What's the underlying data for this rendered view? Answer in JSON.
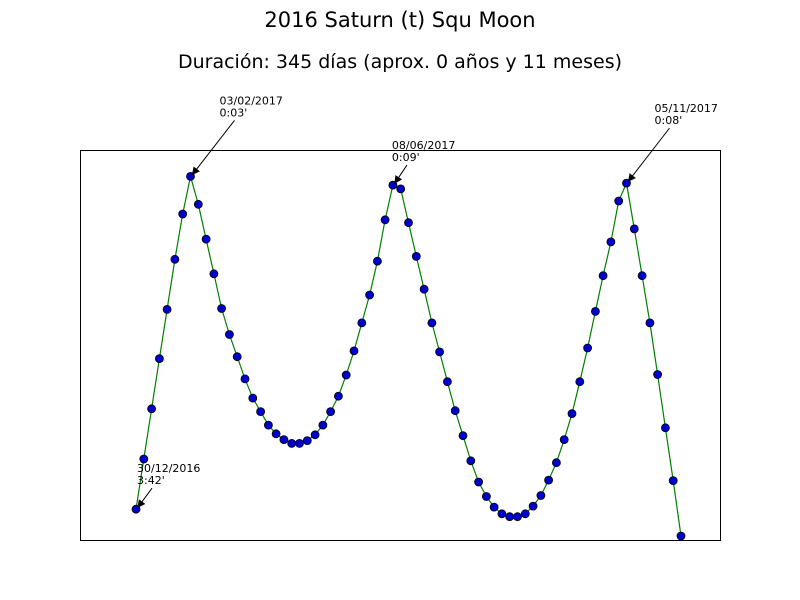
{
  "title": "2016 Saturn (t) Squ Moon",
  "subtitle": "Duración: 345 días (aprox. 0 años y 11 meses)",
  "colors": {
    "line": "#008000",
    "marker_fill": "#0000cc",
    "marker_edge": "#000000",
    "frame": "#000000"
  },
  "chart_data": {
    "type": "line",
    "title": "2016 Saturn (t) Squ Moon",
    "subtitle": "Duración: 345 días (aprox. 0 años y 11 meses)",
    "xlabel": "",
    "ylabel": "",
    "axes_ticks_visible": false,
    "grid": false,
    "legend": "none",
    "series": [
      {
        "marker": "circle",
        "points": [
          0.9286,
          0.7952,
          0.6617,
          0.5282,
          0.3974,
          0.2641,
          0.1436,
          0.0436,
          0.1179,
          0.2103,
          0.3026,
          0.3949,
          0.4641,
          0.5231,
          0.5821,
          0.6333,
          0.6692,
          0.7051,
          0.7282,
          0.7436,
          0.7538,
          0.7538,
          0.7462,
          0.7308,
          0.7051,
          0.6692,
          0.6282,
          0.5718,
          0.5077,
          0.4333,
          0.359,
          0.2692,
          0.159,
          0.0667,
          0.0769,
          0.1667,
          0.2564,
          0.3436,
          0.4333,
          0.5103,
          0.5897,
          0.6667,
          0.7333,
          0.8,
          0.8564,
          0.8949,
          0.9231,
          0.941,
          0.9487,
          0.9487,
          0.941,
          0.9205,
          0.8923,
          0.8513,
          0.8051,
          0.7436,
          0.6744,
          0.5897,
          0.5,
          0.4026,
          0.3077,
          0.2179,
          0.1091,
          0.0615,
          0.1833,
          0.3077,
          0.4333,
          0.5705,
          0.7122,
          0.8526,
          1.0
        ]
      }
    ],
    "annotations": [
      {
        "point_index": 0,
        "date": "30/12/2016",
        "value": "3:42'"
      },
      {
        "point_index": 7,
        "date": "03/02/2017",
        "value": "0:03'"
      },
      {
        "point_index": 33,
        "date": "08/06/2017",
        "value": "0:09'"
      },
      {
        "point_index": 63,
        "date": "05/11/2017",
        "value": "0:08'"
      }
    ]
  }
}
